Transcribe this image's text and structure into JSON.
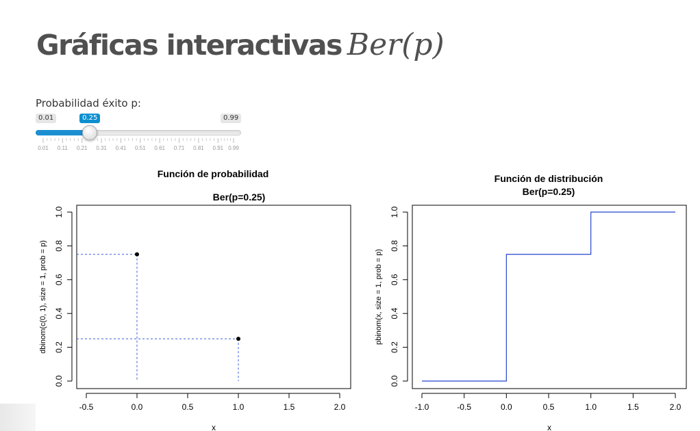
{
  "page": {
    "title": "Gráficas interactivas",
    "title_math": "Ber(p)"
  },
  "slider": {
    "label": "Probabilidad éxito p:",
    "min": 0.01,
    "max": 0.99,
    "value": 0.25,
    "min_label": "0.01",
    "max_label": "0.99",
    "value_label": "0.25",
    "grid_labels": [
      "0.01",
      "0.11",
      "0.21",
      "0.31",
      "0.41",
      "0.51",
      "0.61",
      "0.71",
      "0.81",
      "0.91",
      "0.99"
    ],
    "accent_color": "#1b8fd1"
  },
  "chart_data": [
    {
      "type": "scatter",
      "title": "Función de probabilidad",
      "subtitle": "Ber(p=0.25)",
      "xlabel": "x",
      "ylabel": "dbinom(c(0, 1), size = 1, prob = p)",
      "xlim": [
        -0.5,
        2.0
      ],
      "ylim": [
        0.0,
        1.0
      ],
      "x_ticks": [
        "-0.5",
        "0.0",
        "0.5",
        "1.0",
        "1.5",
        "2.0"
      ],
      "y_ticks": [
        "0.0",
        "0.2",
        "0.4",
        "0.6",
        "0.8",
        "1.0"
      ],
      "points": [
        {
          "x": 0,
          "y": 0.75
        },
        {
          "x": 1,
          "y": 0.25
        }
      ],
      "guide_color": "#3a5bd9",
      "grid": false
    },
    {
      "type": "line",
      "title": "Función de distribución",
      "subtitle": "Ber(p=0.25)",
      "xlabel": "x",
      "ylabel": "pbinom(x, size = 1, prob = p)",
      "xlim": [
        -1.0,
        2.0
      ],
      "ylim": [
        0.0,
        1.0
      ],
      "x_ticks": [
        "-1.0",
        "-0.5",
        "0.0",
        "0.5",
        "1.0",
        "1.5",
        "2.0"
      ],
      "y_ticks": [
        "0.0",
        "0.2",
        "0.4",
        "0.6",
        "0.8",
        "1.0"
      ],
      "x": [
        -1.0,
        0.0,
        0.0,
        1.0,
        1.0,
        2.0
      ],
      "y": [
        0.0,
        0.0,
        0.75,
        0.75,
        1.0,
        1.0
      ],
      "line_color": "#2244cc",
      "grid": false
    }
  ]
}
